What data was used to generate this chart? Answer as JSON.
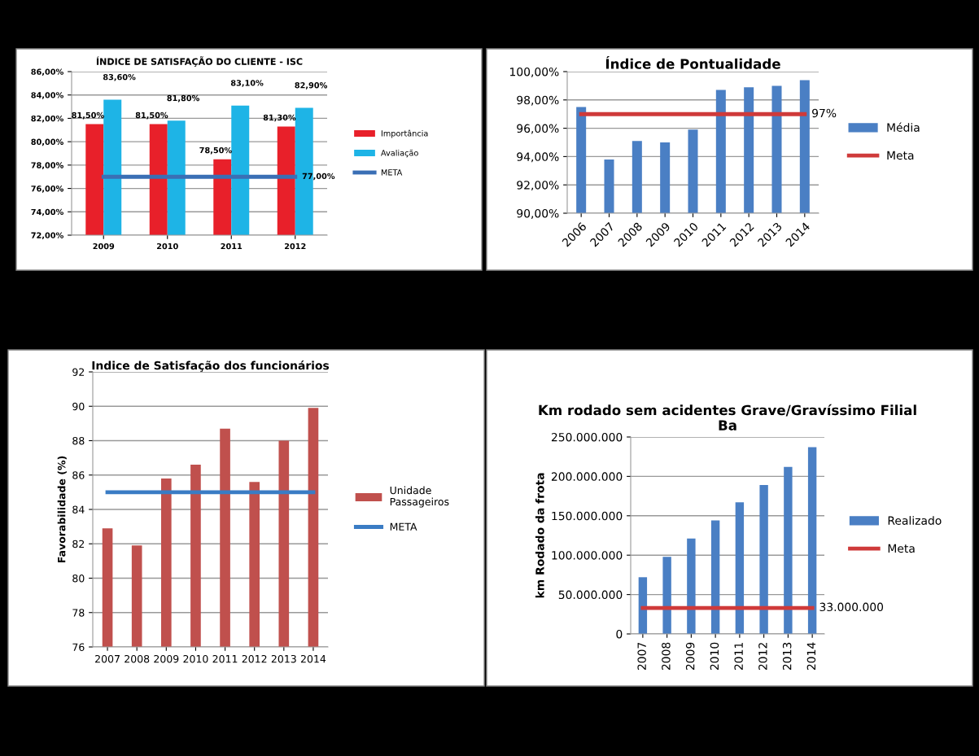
{
  "chart_data": [
    {
      "type": "bar",
      "title": "ÍNDICE DE SATISFAÇÃO DO CLIENTE - ISC",
      "categories": [
        "2009",
        "2010",
        "2011",
        "2012"
      ],
      "series": [
        {
          "name": "Importância",
          "color": "#e8202a",
          "values": [
            81.5,
            81.5,
            78.5,
            81.3
          ],
          "value_labels": [
            "81,50%",
            "81,50%",
            "78,50%",
            "81,30%"
          ]
        },
        {
          "name": "Avaliação",
          "color": "#1eb4e6",
          "values": [
            83.6,
            81.8,
            83.1,
            82.9
          ],
          "value_labels": [
            "83,60%",
            "81,80%",
            "83,10%",
            "82,90%"
          ]
        },
        {
          "name": "META",
          "type": "line",
          "color": "#3a6fb5",
          "values": [
            77,
            77,
            77,
            77
          ],
          "value_labels": [
            null,
            null,
            null,
            "77,00%"
          ]
        }
      ],
      "ylim": [
        72,
        86
      ],
      "yticks": [
        {
          "value": 72,
          "label": "72,00%"
        },
        {
          "value": 74,
          "label": "74,00%"
        },
        {
          "value": 76,
          "label": "76,00%"
        },
        {
          "value": 78,
          "label": "78,00%"
        },
        {
          "value": 80,
          "label": "80,00%"
        },
        {
          "value": 82,
          "label": "82,00%"
        },
        {
          "value": 84,
          "label": "84,00%"
        },
        {
          "value": 86,
          "label": "86,00%"
        }
      ],
      "grid": "y",
      "legend": "right"
    },
    {
      "type": "bar",
      "title": "Índice de Pontualidade",
      "categories": [
        "2006",
        "2007",
        "2008",
        "2009",
        "2010",
        "2011",
        "2012",
        "2013",
        "2014"
      ],
      "series": [
        {
          "name": "Média",
          "color": "#4a7fc4",
          "values": [
            97.5,
            93.8,
            95.1,
            95.0,
            95.9,
            98.7,
            98.9,
            99.0,
            99.4
          ]
        },
        {
          "name": "Meta",
          "type": "line",
          "color": "#cf3a3a",
          "values": [
            97,
            97,
            97,
            97,
            97,
            97,
            97,
            97,
            97
          ],
          "value_labels": [
            null,
            null,
            null,
            null,
            null,
            null,
            null,
            null,
            "97%"
          ]
        }
      ],
      "ylim": [
        90,
        100
      ],
      "yticks": [
        {
          "value": 90,
          "label": "90,00%"
        },
        {
          "value": 92,
          "label": "92,00%"
        },
        {
          "value": 94,
          "label": "94,00%"
        },
        {
          "value": 96,
          "label": "96,00%"
        },
        {
          "value": 98,
          "label": "98,00%"
        },
        {
          "value": 100,
          "label": "100,00%"
        }
      ],
      "grid": "y",
      "legend": "right"
    },
    {
      "type": "bar",
      "title": "Indice de Satisfação dos funcionários",
      "ylabel": "Favorabilidade (%)",
      "categories": [
        "2007",
        "2008",
        "2009",
        "2010",
        "2011",
        "2012",
        "2013",
        "2014"
      ],
      "series": [
        {
          "name": "Unidade\nPassageiros",
          "color": "#c0504d",
          "values": [
            82.9,
            81.9,
            85.8,
            86.6,
            88.7,
            85.6,
            88.0,
            89.9
          ]
        },
        {
          "name": "META",
          "type": "line",
          "color": "#3a7cc4",
          "values": [
            85,
            85,
            85,
            85,
            85,
            85,
            85,
            85
          ]
        }
      ],
      "ylim": [
        76,
        92
      ],
      "yticks": [
        76,
        78,
        80,
        82,
        84,
        86,
        88,
        90,
        92
      ],
      "grid": "y",
      "legend": "right"
    },
    {
      "type": "bar",
      "title": "Km rodado sem acidentes Grave/Gravíssimo Filial\nBa",
      "ylabel": "km Rodado da frota",
      "categories": [
        "2007",
        "2008",
        "2009",
        "2010",
        "2011",
        "2012",
        "2013",
        "2014"
      ],
      "series": [
        {
          "name": "Realizado",
          "color": "#4a7fc4",
          "values": [
            72000000,
            98000000,
            121000000,
            144000000,
            167000000,
            189000000,
            212000000,
            237000000
          ]
        },
        {
          "name": "Meta",
          "type": "line",
          "color": "#cf3a3a",
          "values": [
            33000000,
            33000000,
            33000000,
            33000000,
            33000000,
            33000000,
            33000000,
            33000000
          ],
          "value_labels": [
            null,
            null,
            null,
            null,
            null,
            null,
            null,
            "33.000.000"
          ]
        }
      ],
      "ylim": [
        0,
        250000000
      ],
      "yticks": [
        0,
        {
          "value": 50000000,
          "label": "50.000.000"
        },
        {
          "value": 100000000,
          "label": "100.000.000"
        },
        {
          "value": 150000000,
          "label": "150.000.000"
        },
        {
          "value": 200000000,
          "label": "200.000.000"
        },
        {
          "value": 250000000,
          "label": "250.000.000"
        }
      ],
      "grid": "y",
      "legend": "right"
    }
  ]
}
